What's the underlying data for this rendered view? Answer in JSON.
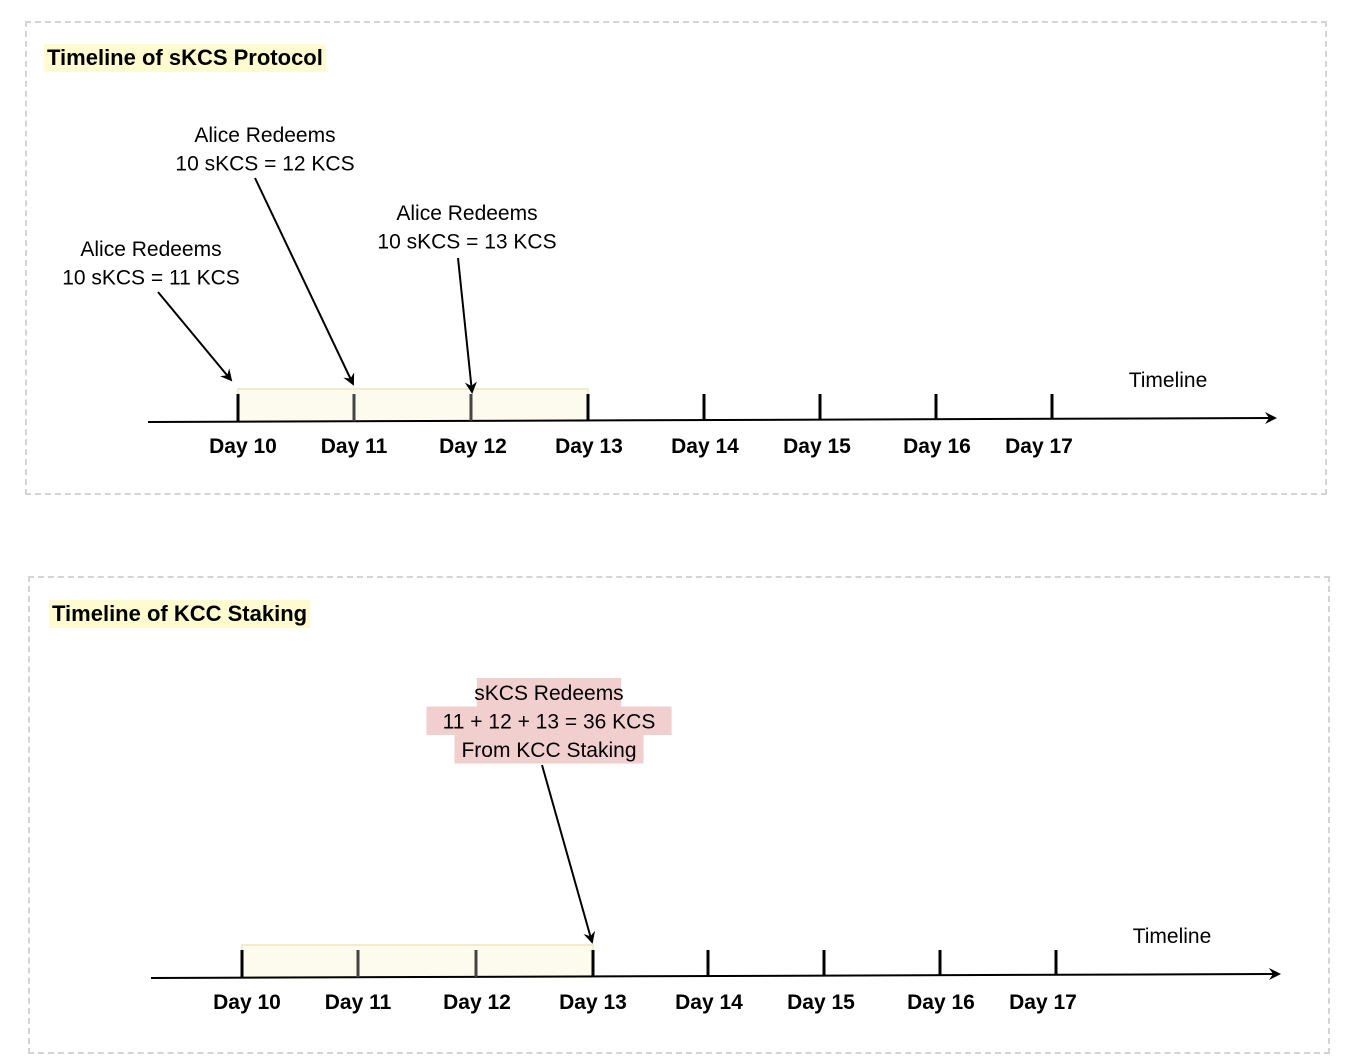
{
  "panels": [
    {
      "title": "Timeline of sKCS Protocol",
      "axis_label": "Timeline",
      "days": [
        "Day 10",
        "Day 11",
        "Day 12",
        "Day 13",
        "Day 14",
        "Day 15",
        "Day 16",
        "Day 17"
      ],
      "annotations": [
        {
          "lines": [
            "Alice Redeems",
            "10 sKCS = 11 KCS"
          ],
          "target_day": "Day 10"
        },
        {
          "lines": [
            "Alice Redeems",
            "10 sKCS = 12 KCS"
          ],
          "target_day": "Day 11"
        },
        {
          "lines": [
            "Alice Redeems",
            "10 sKCS = 13 KCS"
          ],
          "target_day": "Day 12"
        }
      ],
      "highlight_range": [
        "Day 10",
        "Day 13"
      ]
    },
    {
      "title": "Timeline of KCC Staking",
      "axis_label": "Timeline",
      "days": [
        "Day 10",
        "Day 11",
        "Day 12",
        "Day 13",
        "Day 14",
        "Day 15",
        "Day 16",
        "Day 17"
      ],
      "annotations": [
        {
          "lines": [
            "sKCS Redeems",
            "11 + 12 + 13 = 36 KCS",
            "From KCC Staking"
          ],
          "target_day": "Day 13",
          "highlight": true
        }
      ],
      "highlight_range": [
        "Day 10",
        "Day 13"
      ]
    }
  ],
  "colors": {
    "title_bg": "#fffbd0",
    "range_fill": "#fdfbee",
    "range_stroke": "#eee6bd",
    "note_bg": "#f2cfcf",
    "line": "#000000",
    "tick_in_range": "#444444"
  }
}
